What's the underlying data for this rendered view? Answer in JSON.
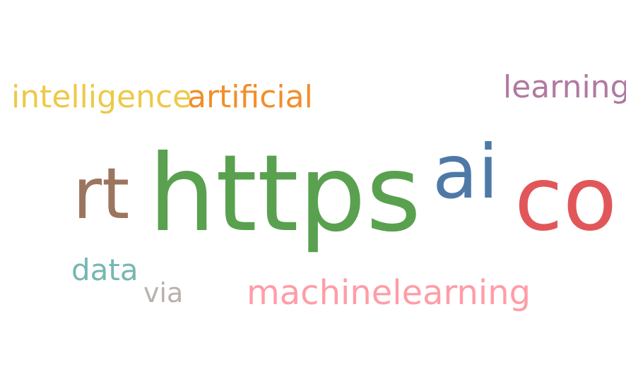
{
  "words": {
    "https": {
      "text": "https",
      "color": "#59a14f"
    },
    "co": {
      "text": "co",
      "color": "#e15759"
    },
    "ai": {
      "text": "ai",
      "color": "#4e79a7"
    },
    "rt": {
      "text": "rt",
      "color": "#9c755f"
    },
    "intelligence": {
      "text": "intelligence",
      "color": "#edc948"
    },
    "artificial": {
      "text": "artificial",
      "color": "#f28e2b"
    },
    "learning": {
      "text": "learning",
      "color": "#b07aa1"
    },
    "data": {
      "text": "data",
      "color": "#76b7b2"
    },
    "via": {
      "text": "via",
      "color": "#bab0ac"
    },
    "machinelearning": {
      "text": "machinelearning",
      "color": "#ff9da7"
    }
  }
}
